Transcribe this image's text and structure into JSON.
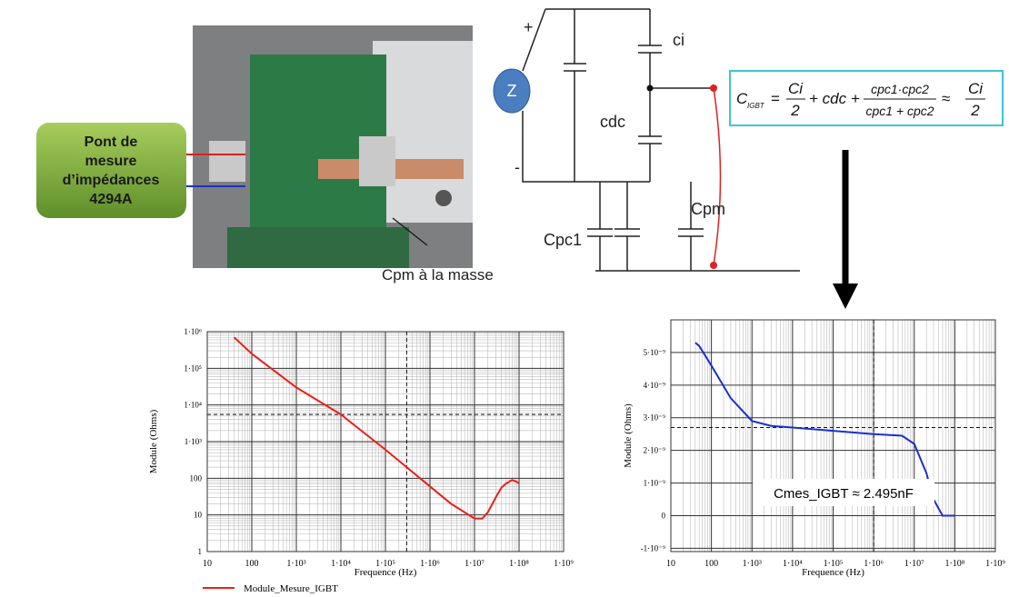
{
  "photo": {
    "lines": [
      "Pont de",
      "mesure",
      "d’impédances",
      "4294A"
    ],
    "caption": "Cpm à la masse"
  },
  "circuit": {
    "plus": "+",
    "minus": "-",
    "source": "Z",
    "ci": "ci",
    "cdc": "cdc",
    "cpm": "Cpm",
    "cpc1": "Cpc1"
  },
  "formula": {
    "parts": [
      "C",
      "IGBT",
      "=",
      "Ci",
      "2",
      "+ cdc +",
      "cpc1·cpc2",
      "cpc1 + cpc2",
      "≈",
      "Ci",
      "2"
    ]
  },
  "chart_data": [
    {
      "type": "line",
      "xscale": "log",
      "yscale": "log",
      "xlabel": "Frequence (Hz)",
      "ylabel": "Module (Ohms)",
      "xlim": [
        10,
        1000000000
      ],
      "ylim": [
        1,
        1000000
      ],
      "xticks": [
        10,
        100,
        {
          "value": 1000,
          "label": "1·10³"
        },
        {
          "value": 10000,
          "label": "1·10⁴"
        },
        {
          "value": 100000,
          "label": "1·10⁵"
        },
        {
          "value": 1000000,
          "label": "1·10⁶"
        },
        {
          "value": 10000000,
          "label": "1·10⁷"
        },
        {
          "value": 100000000,
          "label": "1·10⁸"
        },
        {
          "value": 1000000000,
          "label": "1·10⁹"
        }
      ],
      "yticks": [
        1,
        10,
        100,
        {
          "value": 1000,
          "label": "1·10³"
        },
        {
          "value": 10000,
          "label": "1·10⁴"
        },
        {
          "value": 100000,
          "label": "1·10⁵"
        },
        {
          "value": 1000000,
          "label": "1·10⁶"
        }
      ],
      "grid": true,
      "minor_grid": true,
      "legend": true,
      "ref_lines": {
        "x": [
          300000
        ],
        "y": [
          5500
        ]
      },
      "x": [
        40,
        100,
        1000,
        10000,
        100000,
        1000000,
        3000000,
        10000000,
        15000000,
        20000000,
        30000000,
        40000000,
        50000000,
        70000000,
        100000000
      ],
      "series": [
        {
          "name": "Module_Mesure_IGBT",
          "color": "#e8201a",
          "values": [
            700000,
            250000,
            30000,
            5500,
            600,
            60,
            20,
            8,
            8,
            12,
            30,
            55,
            70,
            90,
            75
          ]
        }
      ]
    },
    {
      "type": "line",
      "xscale": "log",
      "yscale": "linear",
      "xlabel": "Frequence (Hz)",
      "ylabel": "Module (Ohms)",
      "xlim": [
        10,
        1000000000
      ],
      "ylim": [
        -1.1e-09,
        6e-09
      ],
      "xticks": [
        10,
        100,
        {
          "value": 1000,
          "label": "1·10³"
        },
        {
          "value": 10000,
          "label": "1·10⁴"
        },
        {
          "value": 100000,
          "label": "1·10⁵"
        },
        {
          "value": 1000000,
          "label": "1·10⁶"
        },
        {
          "value": 10000000,
          "label": "1·10⁷"
        },
        {
          "value": 100000000,
          "label": "1·10⁸"
        },
        {
          "value": 1000000000,
          "label": "1·10⁹"
        }
      ],
      "yticks": [
        {
          "value": -1e-09,
          "label": "-1·10⁻⁹"
        },
        0,
        {
          "value": 1e-09,
          "label": "1·10⁻⁹"
        },
        {
          "value": 2e-09,
          "label": "2·10⁻⁹"
        },
        {
          "value": 3e-09,
          "label": "3·10⁻⁹"
        },
        {
          "value": 4e-09,
          "label": "4·10⁻⁹"
        },
        {
          "value": 5e-09,
          "label": "5·10⁻⁹"
        }
      ],
      "grid": true,
      "minor_grid": true,
      "legend": false,
      "ref_lines": {
        "x": [
          1000000
        ],
        "y": [
          2.7e-09
        ]
      },
      "annotation": "Cmes_IGBT ≈ 2.495nF",
      "x": [
        40,
        50,
        100,
        300,
        1000,
        3000,
        10000,
        100000,
        1000000,
        5000000,
        10000000,
        20000000,
        30000000,
        50000000,
        100000000
      ],
      "series": [
        {
          "name": "Cmes_IGBT",
          "color": "#1a2fd0",
          "values": [
            5.3e-09,
            5.2e-09,
            4.6e-09,
            3.6e-09,
            2.9e-09,
            2.75e-09,
            2.7e-09,
            2.6e-09,
            2.5e-09,
            2.45e-09,
            2.2e-09,
            1.3e-09,
            5e-10,
            0.0,
            0.0
          ]
        }
      ]
    }
  ]
}
